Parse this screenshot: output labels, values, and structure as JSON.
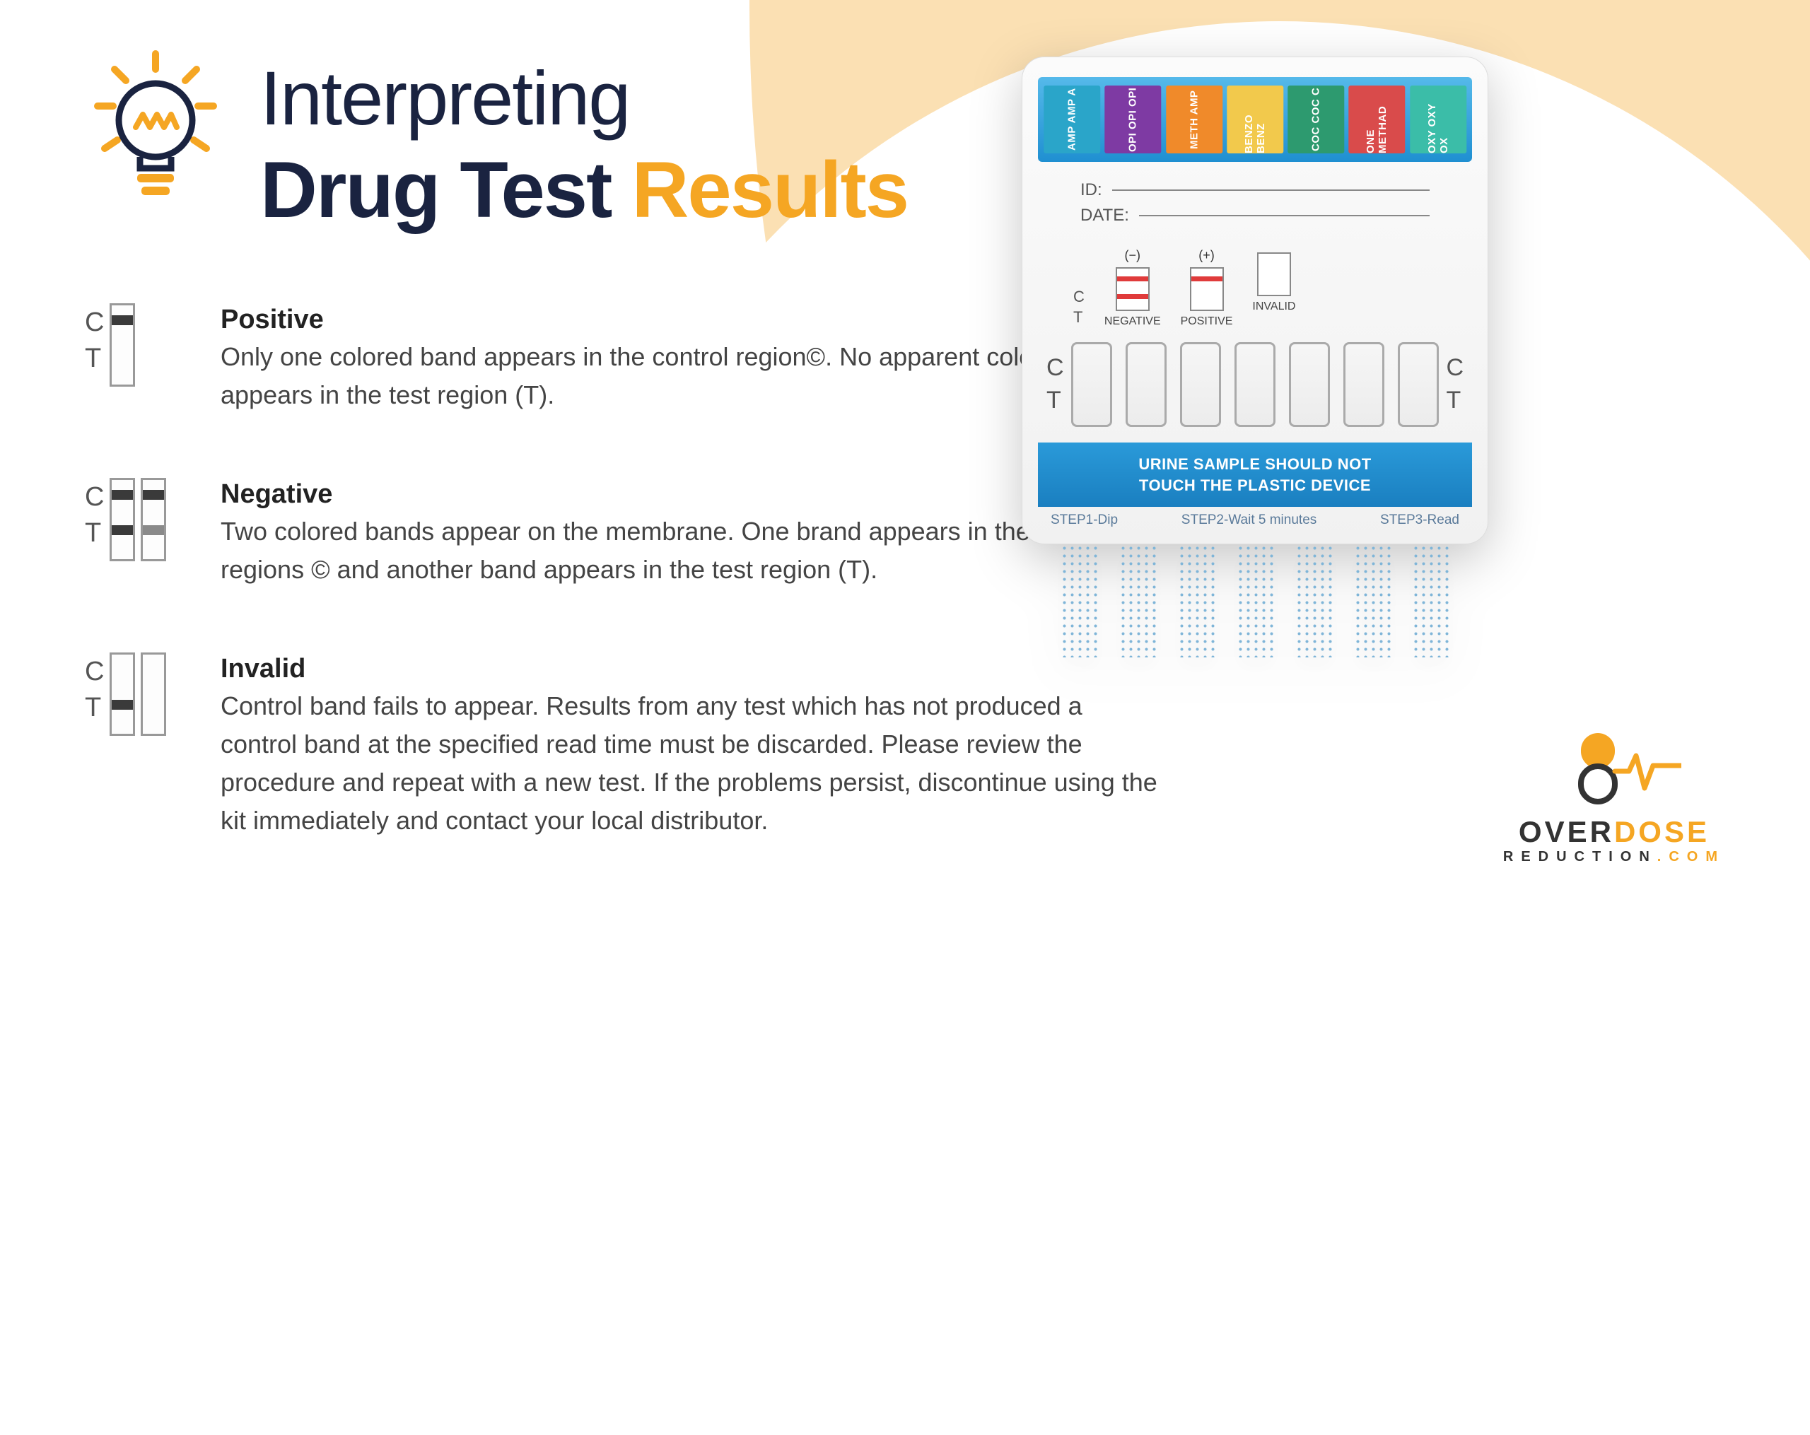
{
  "colors": {
    "accent": "#f5a623",
    "bg_shape": "#fbe0b3",
    "title_dark": "#1a2340",
    "body_text": "#444444",
    "device_blue": "#2a9ad9",
    "band_dark": "#3a3a3a",
    "band_light": "#8a8a8a",
    "legend_band": "#e03b3b"
  },
  "title": {
    "line1": "Interpreting",
    "line2a": "Drug Test ",
    "line2b": "Results"
  },
  "results": [
    {
      "key": "positive",
      "title": "Positive",
      "desc": "Only one colored band appears in the control region©. No apparent colored band appears in the test region (T).",
      "strips": [
        {
          "c": true,
          "t": false
        }
      ]
    },
    {
      "key": "negative",
      "title": "Negative",
      "desc": "Two colored bands appear on the membrane. One brand appears in the control regions © and another band appears in the test region (T).",
      "strips": [
        {
          "c": true,
          "t": true
        },
        {
          "c": true,
          "t": "light"
        }
      ]
    },
    {
      "key": "invalid",
      "title": "Invalid",
      "desc": "Control band fails to appear. Results from any test which has not produced a control band at the specified read time must be discarded. Please review the procedure and repeat with a new test. If the problems persist, discontinue using the kit immediately and contact your local distributor.",
      "strips": [
        {
          "c": false,
          "t": true
        },
        {
          "c": false,
          "t": false
        }
      ]
    }
  ],
  "strip_labels": {
    "c": "C",
    "t": "T"
  },
  "device": {
    "drugs": [
      {
        "label": "AMP AMP A",
        "color": "#2aa5c9"
      },
      {
        "label": "OPI OPI OPI",
        "color": "#7e3aa3"
      },
      {
        "label": "METH AMP",
        "color": "#f08a2a"
      },
      {
        "label": "BENZO BENZ",
        "color": "#f2c94c"
      },
      {
        "label": "COC COC C",
        "color": "#2d9a6f"
      },
      {
        "label": "ONE METHAD",
        "color": "#d94b4b"
      },
      {
        "label": "OXY OXY OX",
        "color": "#3bbda8"
      }
    ],
    "info": {
      "id_label": "ID:",
      "date_label": "DATE:"
    },
    "legend": [
      {
        "sign": "(−)",
        "label": "NEGATIVE",
        "c": true,
        "t": true
      },
      {
        "sign": "(+)",
        "label": "POSITIVE",
        "c": true,
        "t": false
      },
      {
        "sign": "",
        "label": "INVALID",
        "c": false,
        "t": false
      }
    ],
    "window_count": 7,
    "warning_line1": "URINE SAMPLE SHOULD NOT",
    "warning_line2": "TOUCH THE PLASTIC DEVICE",
    "steps": [
      "STEP1-Dip",
      "STEP2-Wait  5 minutes",
      "STEP3-Read"
    ]
  },
  "logo": {
    "text1a": "OVER",
    "text1b": "DOSE",
    "text2": "REDUCTION",
    "text2_suffix": ".COM"
  }
}
